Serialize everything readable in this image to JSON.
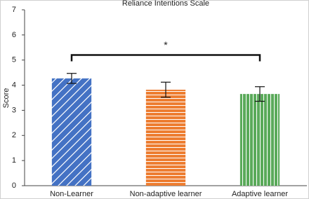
{
  "chart_data": {
    "type": "bar",
    "title": "Reliance Intentions Scale",
    "y_label": "Score",
    "categories": [
      "Non-Learner",
      "Non-adaptive learner",
      "Adaptive learner"
    ],
    "values": [
      4.27,
      3.82,
      3.65
    ],
    "errors": [
      0.2,
      0.3,
      0.29
    ],
    "colors": [
      "#4472c4",
      "#ed7d31",
      "#5aaa5a"
    ],
    "hatches": [
      "diagonal",
      "horizontal",
      "vertical"
    ],
    "ylim": [
      0,
      7
    ],
    "yticks": [
      0,
      1,
      2,
      3,
      4,
      5,
      6,
      7
    ],
    "significance": {
      "label": "*",
      "y": 5.2,
      "between": [
        "Non-Learner",
        "Adaptive learner"
      ]
    }
  }
}
